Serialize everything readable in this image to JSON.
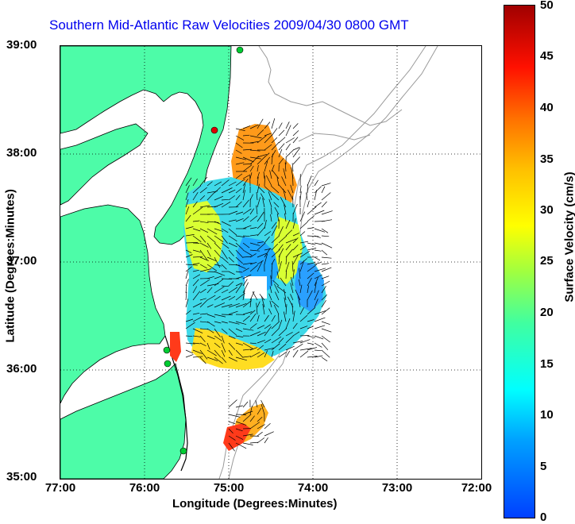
{
  "title": "Southern Mid-Atlantic Raw Velocities 2009/04/30 0800 GMT",
  "x_axis": {
    "label": "Longitude (Degrees:Minutes)",
    "ticks": [
      "77:00",
      "76:00",
      "75:00",
      "74:00",
      "73:00",
      "72:00"
    ]
  },
  "y_axis": {
    "label": "Latitude (Degrees:Minutes)",
    "ticks": [
      "39:00",
      "38:00",
      "37:00",
      "36:00",
      "35:00"
    ]
  },
  "colorbar": {
    "label": "Surface Velocity (cm/s)",
    "ticks": [
      "50",
      "45",
      "40",
      "35",
      "30",
      "25",
      "20",
      "15",
      "10",
      "5",
      "0"
    ],
    "range": [
      0,
      50
    ]
  },
  "colors": {
    "land": "#4dfca8",
    "coast": "#000000",
    "bathymetry": "#9a9a9a",
    "title": "#0000ee",
    "station": "#00cc33",
    "station_red": "#dd0000"
  },
  "stations": [
    "green",
    "red",
    "green",
    "green",
    "green"
  ]
}
